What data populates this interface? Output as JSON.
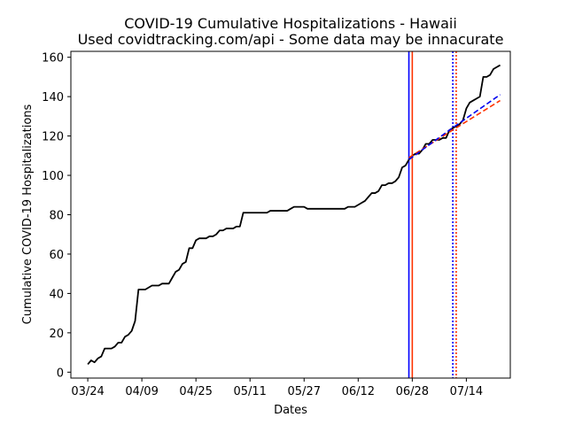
{
  "chart_data": {
    "type": "line",
    "title": "COVID-19 Cumulative Hospitalizations - Hawaii",
    "subtitle": "Used covidtracking.com/api - Some data may be innacurate",
    "xlabel": "Dates",
    "ylabel": "Cumulative COVID-19 Hospitalizations",
    "xlim": [
      "2020-03-19",
      "2020-07-27"
    ],
    "ylim": [
      -3,
      163
    ],
    "x_ticks": [
      "03/24",
      "04/09",
      "04/25",
      "05/11",
      "05/27",
      "06/12",
      "06/28",
      "07/14"
    ],
    "x_tick_dates": [
      "2020-03-24",
      "2020-04-09",
      "2020-04-25",
      "2020-05-11",
      "2020-05-27",
      "2020-06-12",
      "2020-06-28",
      "2020-07-14"
    ],
    "y_ticks": [
      0,
      20,
      40,
      60,
      80,
      100,
      120,
      140,
      160
    ],
    "grid": false,
    "legend": "none",
    "series": [
      {
        "style": "solid",
        "color": "#000000",
        "points": [
          [
            "2020-03-24",
            4
          ],
          [
            "2020-03-25",
            6
          ],
          [
            "2020-03-26",
            5
          ],
          [
            "2020-03-27",
            7
          ],
          [
            "2020-03-28",
            8
          ],
          [
            "2020-03-29",
            12
          ],
          [
            "2020-03-30",
            12
          ],
          [
            "2020-03-31",
            12
          ],
          [
            "2020-04-01",
            13
          ],
          [
            "2020-04-02",
            15
          ],
          [
            "2020-04-03",
            15
          ],
          [
            "2020-04-04",
            18
          ],
          [
            "2020-04-05",
            19
          ],
          [
            "2020-04-06",
            21
          ],
          [
            "2020-04-07",
            26
          ],
          [
            "2020-04-08",
            42
          ],
          [
            "2020-04-09",
            42
          ],
          [
            "2020-04-10",
            42
          ],
          [
            "2020-04-11",
            43
          ],
          [
            "2020-04-12",
            44
          ],
          [
            "2020-04-13",
            44
          ],
          [
            "2020-04-14",
            44
          ],
          [
            "2020-04-15",
            45
          ],
          [
            "2020-04-16",
            45
          ],
          [
            "2020-04-17",
            45
          ],
          [
            "2020-04-18",
            48
          ],
          [
            "2020-04-19",
            51
          ],
          [
            "2020-04-20",
            52
          ],
          [
            "2020-04-21",
            55
          ],
          [
            "2020-04-22",
            56
          ],
          [
            "2020-04-23",
            63
          ],
          [
            "2020-04-24",
            63
          ],
          [
            "2020-04-25",
            67
          ],
          [
            "2020-04-26",
            68
          ],
          [
            "2020-04-27",
            68
          ],
          [
            "2020-04-28",
            68
          ],
          [
            "2020-04-29",
            69
          ],
          [
            "2020-04-30",
            69
          ],
          [
            "2020-05-01",
            70
          ],
          [
            "2020-05-02",
            72
          ],
          [
            "2020-05-03",
            72
          ],
          [
            "2020-05-04",
            73
          ],
          [
            "2020-05-05",
            73
          ],
          [
            "2020-05-06",
            73
          ],
          [
            "2020-05-07",
            74
          ],
          [
            "2020-05-08",
            74
          ],
          [
            "2020-05-09",
            81
          ],
          [
            "2020-05-10",
            81
          ],
          [
            "2020-05-11",
            81
          ],
          [
            "2020-05-12",
            81
          ],
          [
            "2020-05-13",
            81
          ],
          [
            "2020-05-14",
            81
          ],
          [
            "2020-05-15",
            81
          ],
          [
            "2020-05-16",
            81
          ],
          [
            "2020-05-17",
            82
          ],
          [
            "2020-05-18",
            82
          ],
          [
            "2020-05-19",
            82
          ],
          [
            "2020-05-20",
            82
          ],
          [
            "2020-05-21",
            82
          ],
          [
            "2020-05-22",
            82
          ],
          [
            "2020-05-23",
            83
          ],
          [
            "2020-05-24",
            84
          ],
          [
            "2020-05-25",
            84
          ],
          [
            "2020-05-26",
            84
          ],
          [
            "2020-05-27",
            84
          ],
          [
            "2020-05-28",
            83
          ],
          [
            "2020-05-29",
            83
          ],
          [
            "2020-05-30",
            83
          ],
          [
            "2020-05-31",
            83
          ],
          [
            "2020-06-01",
            83
          ],
          [
            "2020-06-02",
            83
          ],
          [
            "2020-06-03",
            83
          ],
          [
            "2020-06-04",
            83
          ],
          [
            "2020-06-05",
            83
          ],
          [
            "2020-06-06",
            83
          ],
          [
            "2020-06-07",
            83
          ],
          [
            "2020-06-08",
            83
          ],
          [
            "2020-06-09",
            84
          ],
          [
            "2020-06-10",
            84
          ],
          [
            "2020-06-11",
            84
          ],
          [
            "2020-06-12",
            85
          ],
          [
            "2020-06-13",
            86
          ],
          [
            "2020-06-14",
            87
          ],
          [
            "2020-06-15",
            89
          ],
          [
            "2020-06-16",
            91
          ],
          [
            "2020-06-17",
            91
          ],
          [
            "2020-06-18",
            92
          ],
          [
            "2020-06-19",
            95
          ],
          [
            "2020-06-20",
            95
          ],
          [
            "2020-06-21",
            96
          ],
          [
            "2020-06-22",
            96
          ],
          [
            "2020-06-23",
            97
          ],
          [
            "2020-06-24",
            99
          ],
          [
            "2020-06-25",
            104
          ],
          [
            "2020-06-26",
            105
          ],
          [
            "2020-06-27",
            108
          ],
          [
            "2020-06-28",
            110
          ],
          [
            "2020-06-29",
            111
          ],
          [
            "2020-06-30",
            111
          ],
          [
            "2020-07-01",
            113
          ],
          [
            "2020-07-02",
            116
          ],
          [
            "2020-07-03",
            116
          ],
          [
            "2020-07-04",
            118
          ],
          [
            "2020-07-05",
            118
          ],
          [
            "2020-07-06",
            118
          ],
          [
            "2020-07-07",
            119
          ],
          [
            "2020-07-08",
            119
          ],
          [
            "2020-07-09",
            123
          ],
          [
            "2020-07-10",
            124
          ],
          [
            "2020-07-11",
            125
          ],
          [
            "2020-07-12",
            126
          ],
          [
            "2020-07-13",
            128
          ],
          [
            "2020-07-14",
            134
          ],
          [
            "2020-07-15",
            137
          ],
          [
            "2020-07-16",
            138
          ],
          [
            "2020-07-17",
            139
          ],
          [
            "2020-07-18",
            140
          ],
          [
            "2020-07-19",
            150
          ],
          [
            "2020-07-20",
            150
          ],
          [
            "2020-07-21",
            151
          ],
          [
            "2020-07-22",
            154
          ],
          [
            "2020-07-23",
            155
          ],
          [
            "2020-07-24",
            156
          ]
        ]
      },
      {
        "style": "dashed",
        "color": "#ff3300",
        "points": [
          [
            "2020-06-27",
            109
          ],
          [
            "2020-07-09",
            122
          ],
          [
            "2020-07-24",
            138
          ]
        ]
      },
      {
        "style": "dashed",
        "color": "#0000ee",
        "points": [
          [
            "2020-06-27",
            108
          ],
          [
            "2020-07-09",
            123
          ],
          [
            "2020-07-24",
            141
          ]
        ]
      }
    ],
    "vertical_lines": [
      {
        "x": "2020-06-27",
        "style": "solid",
        "color": "#0000ff"
      },
      {
        "x": "2020-06-28",
        "style": "solid",
        "color": "#ff3300"
      },
      {
        "x": "2020-07-10",
        "style": "dotted",
        "color": "#0000ff"
      },
      {
        "x": "2020-07-11",
        "style": "dotted",
        "color": "#ff3300"
      }
    ]
  }
}
